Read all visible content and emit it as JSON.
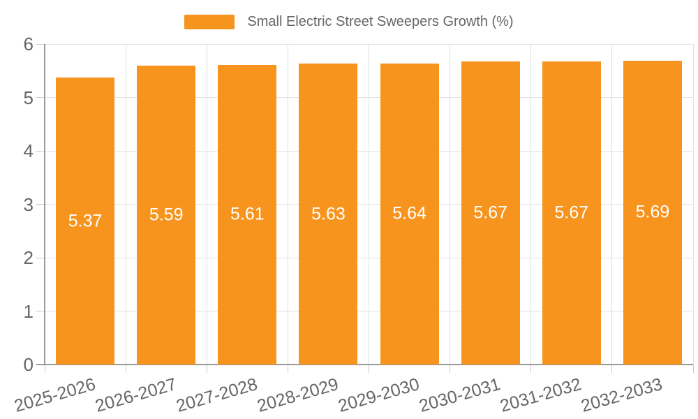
{
  "legend": {
    "label": "Small Electric Street Sweepers Growth (%)",
    "swatch_color": "#F7941E"
  },
  "chart_data": {
    "type": "bar",
    "title": "Small Electric Street Sweepers Growth (%)",
    "categories": [
      "2025-2026",
      "2026-2027",
      "2027-2028",
      "2028-2029",
      "2029-2030",
      "2030-2031",
      "2031-2032",
      "2032-2033"
    ],
    "series": [
      {
        "name": "Small Electric Street Sweepers Growth (%)",
        "values": [
          5.37,
          5.59,
          5.61,
          5.63,
          5.64,
          5.67,
          5.67,
          5.69
        ]
      }
    ],
    "value_labels": [
      "5.37",
      "5.59",
      "5.61",
      "5.63",
      "5.64",
      "5.67",
      "5.67",
      "5.69"
    ],
    "xlabel": "",
    "ylabel": "",
    "ylim": [
      0,
      6
    ],
    "yticks": [
      0,
      1,
      2,
      3,
      4,
      5,
      6
    ],
    "grid": true,
    "legend_position": "top-center",
    "x_label_rotation_deg": -16,
    "colors": {
      "bar": "#F7941E",
      "value_label": "#ffffff",
      "axis_text": "#666666",
      "grid_line": "#E0E0E0",
      "axis_line": "#999999",
      "tick_line": "#C9C9C9",
      "background": "#ffffff"
    }
  }
}
